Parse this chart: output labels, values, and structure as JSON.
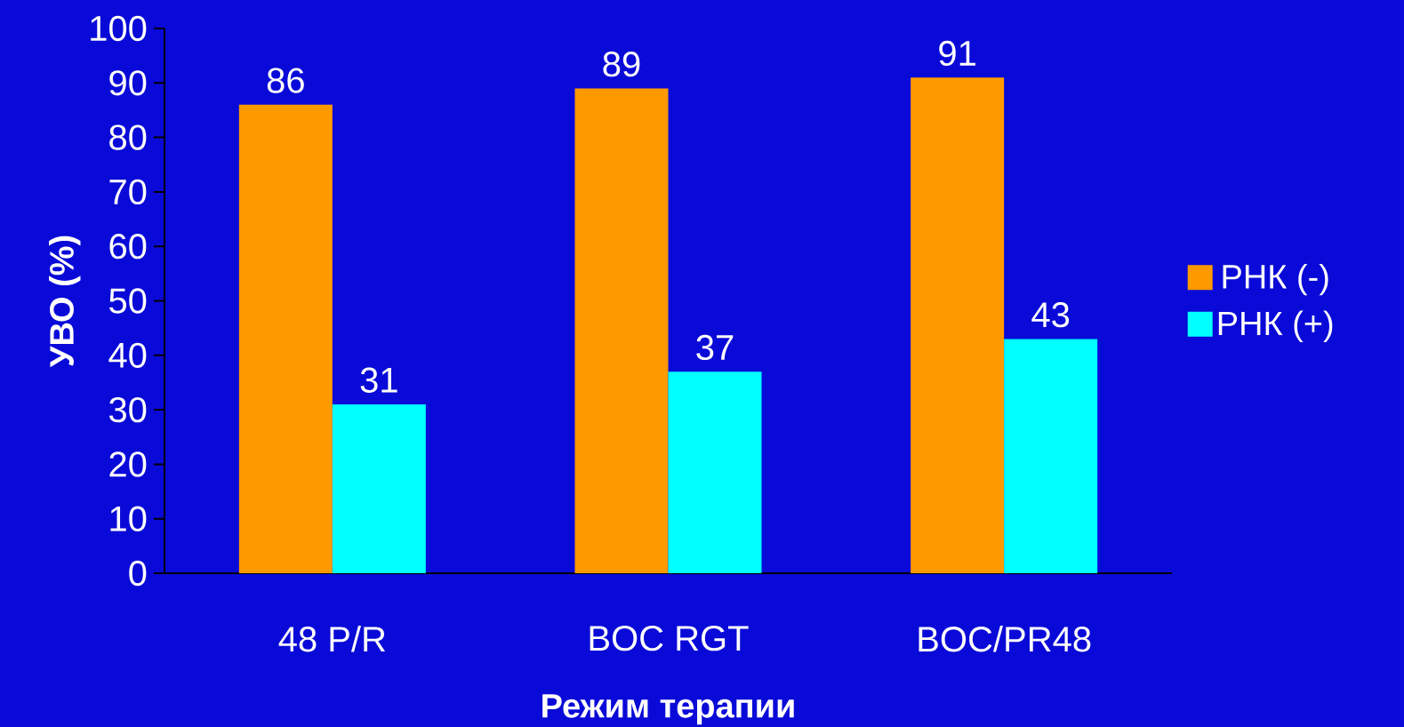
{
  "chart_data": {
    "type": "bar",
    "xlabel": "Режим терапии",
    "ylabel": "УВО (%)",
    "categories": [
      "48 P/R",
      "BOC RGT",
      "BOC/PR48"
    ],
    "series": [
      {
        "name": "РНК (-)",
        "color": "#ff9900",
        "values": [
          86,
          89,
          91
        ]
      },
      {
        "name": "РНК (+)",
        "color": "#00ffff",
        "values": [
          31,
          37,
          43
        ]
      }
    ],
    "ylim": [
      0,
      100
    ],
    "yticks": [
      0,
      10,
      20,
      30,
      40,
      50,
      60,
      70,
      80,
      90,
      100
    ],
    "data_labels": true,
    "legend": "right"
  }
}
